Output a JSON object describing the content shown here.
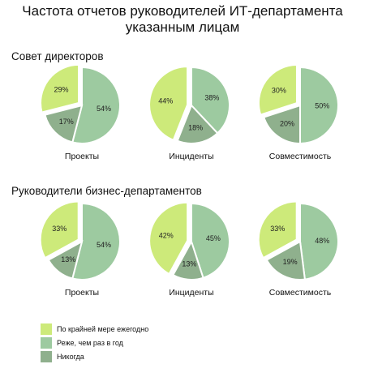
{
  "title_line1": "Частота отчетов руководителей ИТ-департамента",
  "title_line2": "указанным лицам",
  "legend": [
    {
      "label": "По крайней мере ежегодно",
      "color": "#cdea7a"
    },
    {
      "label": "Реже, чем раз в год",
      "color": "#9dcaa0"
    },
    {
      "label": "Никогда",
      "color": "#8fb08d"
    }
  ],
  "chart_data": [
    {
      "type": "pie",
      "group": "Совет директоров",
      "title": "Проекты",
      "slices": [
        {
          "series": "По крайней мере ежегодно",
          "value": 29,
          "label": "29%"
        },
        {
          "series": "Реже, чем раз в год",
          "value": 54,
          "label": "54%"
        },
        {
          "series": "Никогда",
          "value": 17,
          "label": "17%"
        }
      ]
    },
    {
      "type": "pie",
      "group": "Совет директоров",
      "title": "Инциденты",
      "slices": [
        {
          "series": "По крайней мере ежегодно",
          "value": 44,
          "label": "44%"
        },
        {
          "series": "Реже, чем раз в год",
          "value": 38,
          "label": "38%"
        },
        {
          "series": "Никогда",
          "value": 18,
          "label": "18%"
        }
      ]
    },
    {
      "type": "pie",
      "group": "Совет директоров",
      "title": "Совместимость",
      "slices": [
        {
          "series": "По крайней мере ежегодно",
          "value": 30,
          "label": "30%"
        },
        {
          "series": "Реже, чем раз в год",
          "value": 50,
          "label": "50%"
        },
        {
          "series": "Никогда",
          "value": 20,
          "label": "20%"
        }
      ]
    },
    {
      "type": "pie",
      "group": "Руководители бизнес-департаментов",
      "title": "Проекты",
      "slices": [
        {
          "series": "По крайней мере ежегодно",
          "value": 33,
          "label": "33%"
        },
        {
          "series": "Реже, чем раз в год",
          "value": 54,
          "label": "54%"
        },
        {
          "series": "Никогда",
          "value": 13,
          "label": "13%"
        }
      ]
    },
    {
      "type": "pie",
      "group": "Руководители бизнес-департаментов",
      "title": "Инциденты",
      "slices": [
        {
          "series": "По крайней мере ежегодно",
          "value": 42,
          "label": "42%"
        },
        {
          "series": "Реже, чем раз в год",
          "value": 45,
          "label": "45%"
        },
        {
          "series": "Никогда",
          "value": 13,
          "label": "13%"
        }
      ]
    },
    {
      "type": "pie",
      "group": "Руководители бизнес-департаментов",
      "title": "Совместимость",
      "slices": [
        {
          "series": "По крайней мере ежегодно",
          "value": 33,
          "label": "33%"
        },
        {
          "series": "Реже, чем раз в год",
          "value": 48,
          "label": "48%"
        },
        {
          "series": "Никогда",
          "value": 19,
          "label": "19%"
        }
      ]
    }
  ]
}
